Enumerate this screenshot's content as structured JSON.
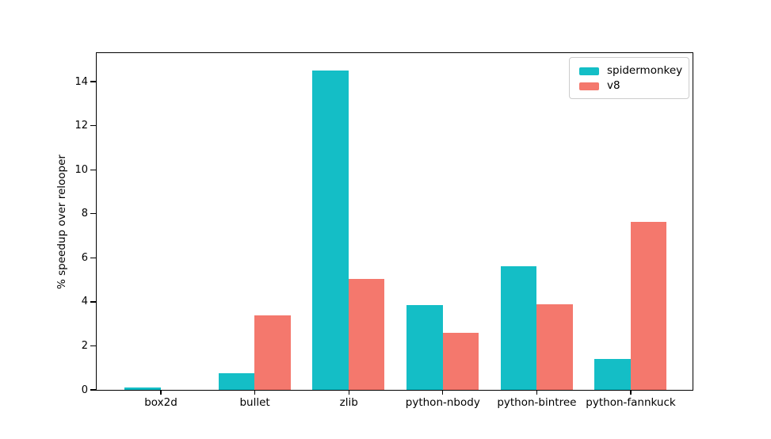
{
  "chart_data": {
    "type": "bar",
    "title": "",
    "xlabel": "",
    "ylabel": "% speedup over relooper",
    "categories": [
      "box2d",
      "bullet",
      "zlib",
      "python-nbody",
      "python-bintree",
      "python-fannkuck"
    ],
    "series": [
      {
        "name": "spidermonkey",
        "color": "#14bec6",
        "values": [
          0.1,
          0.75,
          14.5,
          3.85,
          5.6,
          1.4
        ]
      },
      {
        "name": "v8",
        "color": "#f4786d",
        "values": [
          0,
          3.4,
          5.05,
          2.6,
          3.9,
          7.65
        ]
      }
    ],
    "yticks": [
      0,
      2,
      4,
      6,
      8,
      10,
      12,
      14
    ],
    "ylim": [
      0,
      15.3
    ],
    "grid": false,
    "legend_position": "upper right",
    "background": "#ffffff",
    "spine_color": "#000000"
  }
}
